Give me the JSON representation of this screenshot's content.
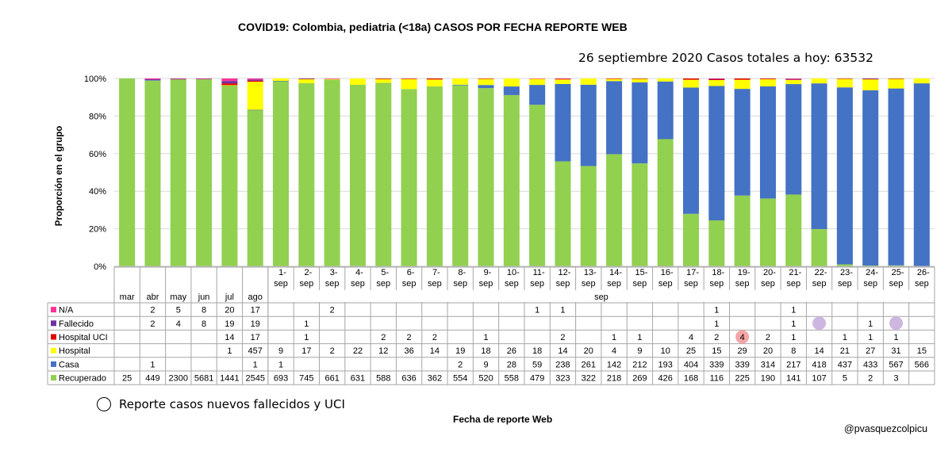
{
  "chart_data": {
    "type": "bar",
    "stacked": true,
    "normalized": true,
    "title": "COVID19: Colombia, pediatria (<18a) CASOS POR FECHA REPORTE WEB",
    "subtitle": "26 septiembre 2020 Casos totales a hoy: 63532",
    "ylabel": "Proporción en el grupo",
    "xlabel": "Fecha de reporte Web",
    "ylim": [
      0,
      100
    ],
    "yticks": [
      "0%",
      "20%",
      "40%",
      "60%",
      "80%",
      "100%"
    ],
    "month_categories": [
      "mar",
      "abr",
      "may",
      "jun",
      "jul",
      "ago"
    ],
    "day_categories": [
      "1-",
      "2-",
      "3-",
      "4-",
      "5-",
      "6-",
      "7-",
      "8-",
      "9-",
      "10-",
      "11-",
      "12-",
      "13-",
      "14-",
      "15-",
      "16-",
      "17-",
      "18-",
      "19-",
      "20-",
      "21-",
      "22-",
      "23-",
      "24-",
      "25-",
      "26-"
    ],
    "day_suffix": "sep",
    "group_label": "sep",
    "series": [
      {
        "name": "N/A",
        "color": "#ff3399",
        "values": [
          "",
          "2",
          "5",
          "8",
          "20",
          "17",
          "",
          "",
          "2",
          "",
          "",
          "",
          "",
          "",
          "",
          "",
          "1",
          "1",
          "",
          "",
          "",
          "",
          "",
          "1",
          "",
          "",
          "1",
          "",
          "",
          "",
          "",
          ""
        ]
      },
      {
        "name": "Fallecido",
        "color": "#7030a0",
        "values": [
          "",
          "2",
          "4",
          "8",
          "19",
          "19",
          "",
          "1",
          "",
          "",
          "",
          "",
          "",
          "",
          "",
          "",
          "",
          "",
          "",
          "",
          "",
          "",
          "",
          "1",
          "",
          "",
          "1",
          "",
          "",
          "1",
          "",
          ""
        ]
      },
      {
        "name": "Hospital UCI",
        "color": "#e00000",
        "values": [
          "",
          "",
          "",
          "",
          "14",
          "17",
          "",
          "1",
          "",
          "",
          "2",
          "2",
          "2",
          "",
          "1",
          "",
          "",
          "2",
          "",
          "1",
          "1",
          "",
          "4",
          "2",
          "4",
          "2",
          "1",
          "",
          "1",
          "1",
          "1",
          ""
        ]
      },
      {
        "name": "Hospital",
        "color": "#ffff00",
        "values": [
          "",
          "",
          "",
          "",
          "1",
          "457",
          "9",
          "17",
          "2",
          "22",
          "12",
          "36",
          "14",
          "19",
          "18",
          "26",
          "18",
          "14",
          "20",
          "4",
          "9",
          "10",
          "25",
          "15",
          "29",
          "20",
          "8",
          "14",
          "21",
          "27",
          "31",
          "15"
        ]
      },
      {
        "name": "Casa",
        "color": "#4472c4",
        "values": [
          "",
          "1",
          "",
          "",
          "",
          "1",
          "1",
          "",
          "",
          "",
          "",
          "",
          "",
          "2",
          "9",
          "28",
          "59",
          "238",
          "261",
          "142",
          "212",
          "193",
          "404",
          "339",
          "339",
          "314",
          "217",
          "418",
          "437",
          "433",
          "567",
          "566"
        ]
      },
      {
        "name": "Recuperado",
        "color": "#92d050",
        "values": [
          "25",
          "449",
          "2300",
          "5681",
          "1441",
          "2545",
          "693",
          "745",
          "661",
          "631",
          "588",
          "636",
          "362",
          "554",
          "520",
          "558",
          "479",
          "323",
          "322",
          "218",
          "269",
          "426",
          "168",
          "116",
          "225",
          "190",
          "141",
          "107",
          "5",
          "2",
          "3",
          ""
        ]
      }
    ],
    "highlights": [
      {
        "series": "Hospital UCI",
        "index": 24,
        "color": "#f4a6a6"
      },
      {
        "series": "Fallecido",
        "index": 27,
        "color": "#cdb6e0"
      },
      {
        "series": "Fallecido",
        "index": 30,
        "color": "#cdb6e0"
      }
    ]
  },
  "note": "Reporte casos nuevos fallecidos y UCI",
  "credit": "@pvasquezcolpicu"
}
